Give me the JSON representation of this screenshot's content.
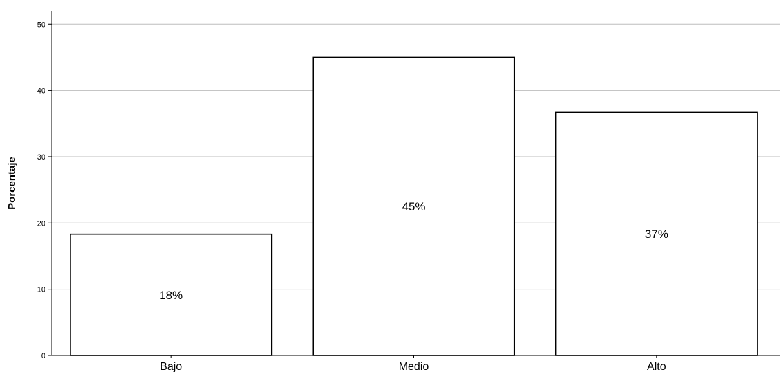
{
  "chart_data": {
    "type": "bar",
    "title": "",
    "xlabel": "",
    "ylabel": "Porcentaje",
    "categories": [
      "Bajo",
      "Medio",
      "Alto"
    ],
    "values": [
      18.3,
      45.0,
      36.7
    ],
    "data_labels": [
      "18%",
      "45%",
      "37%"
    ],
    "ylim": [
      0,
      52
    ],
    "yticks": [
      0,
      10,
      20,
      30,
      40,
      50
    ],
    "grid": true,
    "legend": "none",
    "bar_fill": "#ffffff",
    "bar_stroke": "#000000"
  }
}
